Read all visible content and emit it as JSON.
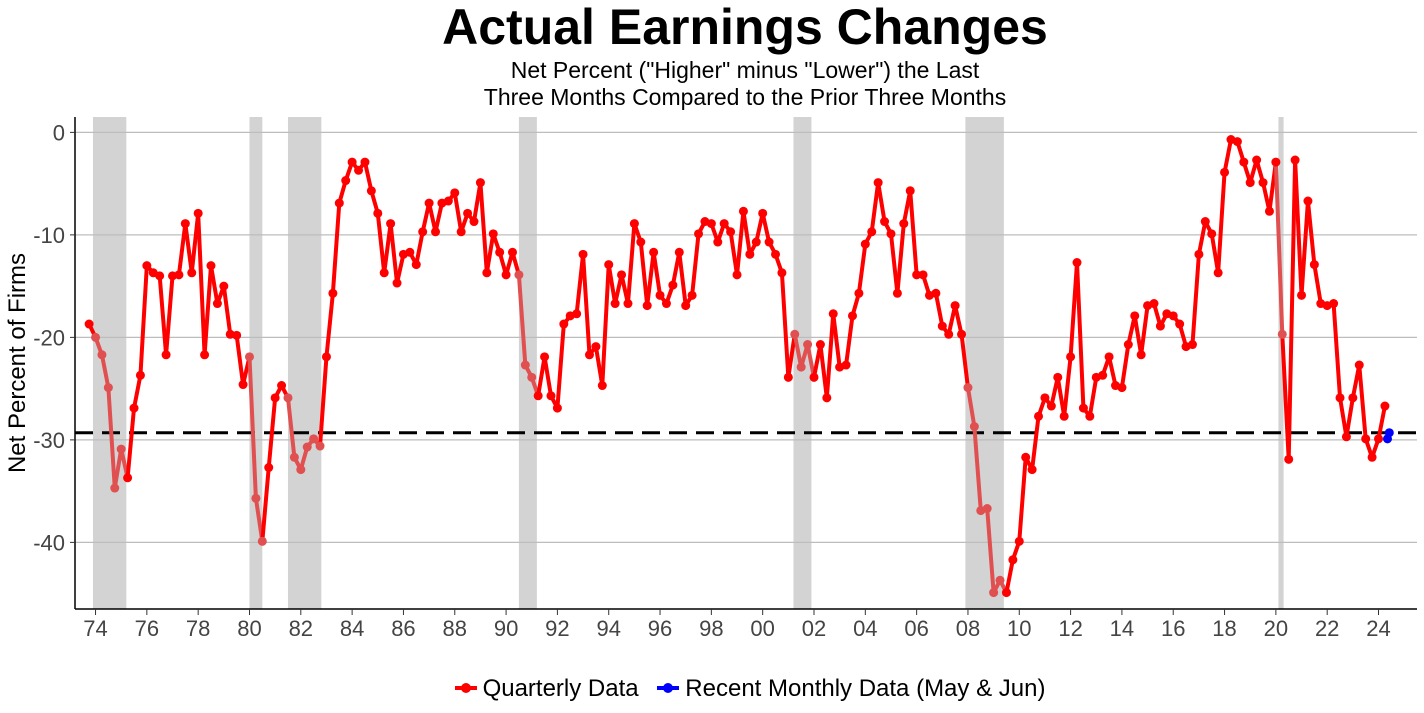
{
  "chart_data": {
    "type": "line",
    "title": "Actual Earnings Changes",
    "subtitle_line1": "Net Percent (\"Higher\" minus \"Lower\") the Last",
    "subtitle_line2": "Three Months Compared to the Prior Three Months",
    "ylabel": "Net Percent of Firms",
    "xlabel": "",
    "xlim": [
      1973.2,
      2025.5
    ],
    "ylim": [
      -46.5,
      1.5
    ],
    "x_ticks": [
      1974,
      1976,
      1978,
      1980,
      1982,
      1984,
      1986,
      1988,
      1990,
      1992,
      1994,
      1996,
      1998,
      2000,
      2002,
      2004,
      2006,
      2008,
      2010,
      2012,
      2014,
      2016,
      2018,
      2020,
      2022,
      2024
    ],
    "x_tick_labels": [
      "74",
      "76",
      "78",
      "80",
      "82",
      "84",
      "86",
      "88",
      "90",
      "92",
      "94",
      "96",
      "98",
      "00",
      "02",
      "04",
      "06",
      "08",
      "10",
      "12",
      "14",
      "16",
      "18",
      "20",
      "22",
      "24"
    ],
    "y_ticks": [
      0,
      -10,
      -20,
      -30,
      -40
    ],
    "y_tick_labels": [
      "0",
      "-10",
      "-20",
      "-30",
      "-40"
    ],
    "reference_line": -29.3,
    "recessions": [
      [
        1973.9,
        1975.2
      ],
      [
        1980.0,
        1980.5
      ],
      [
        1981.5,
        1982.8
      ],
      [
        1990.5,
        1991.2
      ],
      [
        2001.2,
        2001.9
      ],
      [
        2007.9,
        2009.4
      ],
      [
        2020.1,
        2020.3
      ]
    ],
    "colors": {
      "quarterly": "#ff0000",
      "recession_segment": "#e05050",
      "monthly": "#0000ff",
      "recession_shade": "#d3d3d3",
      "grid": "#bdbdbd",
      "reference": "#000000"
    },
    "series": [
      {
        "name": "Quarterly Data",
        "x": [
          1973.75,
          1974.0,
          1974.25,
          1974.5,
          1974.75,
          1975.0,
          1975.25,
          1975.5,
          1975.75,
          1976.0,
          1976.25,
          1976.5,
          1976.75,
          1977.0,
          1977.25,
          1977.5,
          1977.75,
          1978.0,
          1978.25,
          1978.5,
          1978.75,
          1979.0,
          1979.25,
          1979.5,
          1979.75,
          1980.0,
          1980.25,
          1980.5,
          1980.75,
          1981.0,
          1981.25,
          1981.5,
          1981.75,
          1982.0,
          1982.25,
          1982.5,
          1982.75,
          1983.0,
          1983.25,
          1983.5,
          1983.75,
          1984.0,
          1984.25,
          1984.5,
          1984.75,
          1985.0,
          1985.25,
          1985.5,
          1985.75,
          1986.0,
          1986.25,
          1986.5,
          1986.75,
          1987.0,
          1987.25,
          1987.5,
          1987.75,
          1988.0,
          1988.25,
          1988.5,
          1988.75,
          1989.0,
          1989.25,
          1989.5,
          1989.75,
          1990.0,
          1990.25,
          1990.5,
          1990.75,
          1991.0,
          1991.25,
          1991.5,
          1991.75,
          1992.0,
          1992.25,
          1992.5,
          1992.75,
          1993.0,
          1993.25,
          1993.5,
          1993.75,
          1994.0,
          1994.25,
          1994.5,
          1994.75,
          1995.0,
          1995.25,
          1995.5,
          1995.75,
          1996.0,
          1996.25,
          1996.5,
          1996.75,
          1997.0,
          1997.25,
          1997.5,
          1997.75,
          1998.0,
          1998.25,
          1998.5,
          1998.75,
          1999.0,
          1999.25,
          1999.5,
          1999.75,
          2000.0,
          2000.25,
          2000.5,
          2000.75,
          2001.0,
          2001.25,
          2001.5,
          2001.75,
          2002.0,
          2002.25,
          2002.5,
          2002.75,
          2003.0,
          2003.25,
          2003.5,
          2003.75,
          2004.0,
          2004.25,
          2004.5,
          2004.75,
          2005.0,
          2005.25,
          2005.5,
          2005.75,
          2006.0,
          2006.25,
          2006.5,
          2006.75,
          2007.0,
          2007.25,
          2007.5,
          2007.75,
          2008.0,
          2008.25,
          2008.5,
          2008.75,
          2009.0,
          2009.25,
          2009.5,
          2009.75,
          2010.0,
          2010.25,
          2010.5,
          2010.75,
          2011.0,
          2011.25,
          2011.5,
          2011.75,
          2012.0,
          2012.25,
          2012.5,
          2012.75,
          2013.0,
          2013.25,
          2013.5,
          2013.75,
          2014.0,
          2014.25,
          2014.5,
          2014.75,
          2015.0,
          2015.25,
          2015.5,
          2015.75,
          2016.0,
          2016.25,
          2016.5,
          2016.75,
          2017.0,
          2017.25,
          2017.5,
          2017.75,
          2018.0,
          2018.25,
          2018.5,
          2018.75,
          2019.0,
          2019.25,
          2019.5,
          2019.75,
          2020.0,
          2020.25,
          2020.5,
          2020.75,
          2021.0,
          2021.25,
          2021.5,
          2021.75,
          2022.0,
          2022.25,
          2022.5,
          2022.75,
          2023.0,
          2023.25,
          2023.5,
          2023.75,
          2024.0,
          2024.25
        ],
        "values": [
          -18.7,
          -20.0,
          -21.7,
          -24.9,
          -34.7,
          -30.9,
          -33.7,
          -26.9,
          -23.7,
          -13.0,
          -13.7,
          -14.0,
          -21.7,
          -14.0,
          -13.9,
          -8.9,
          -13.7,
          -7.9,
          -21.7,
          -13.0,
          -16.7,
          -15.0,
          -19.7,
          -19.8,
          -24.6,
          -21.9,
          -35.7,
          -39.9,
          -32.7,
          -25.9,
          -24.7,
          -25.9,
          -31.7,
          -32.9,
          -30.7,
          -29.9,
          -30.6,
          -21.9,
          -15.7,
          -6.9,
          -4.7,
          -2.9,
          -3.7,
          -2.9,
          -5.7,
          -7.9,
          -13.7,
          -8.9,
          -14.7,
          -11.9,
          -11.7,
          -12.9,
          -9.7,
          -6.9,
          -9.7,
          -6.9,
          -6.7,
          -5.9,
          -9.7,
          -7.9,
          -8.7,
          -4.9,
          -13.7,
          -9.9,
          -11.7,
          -13.9,
          -11.7,
          -13.9,
          -22.7,
          -23.9,
          -25.7,
          -21.9,
          -25.7,
          -26.9,
          -18.7,
          -17.9,
          -17.7,
          -11.9,
          -21.7,
          -20.9,
          -24.7,
          -12.9,
          -16.7,
          -13.9,
          -16.7,
          -8.9,
          -10.7,
          -16.9,
          -11.7,
          -15.9,
          -16.7,
          -14.9,
          -11.7,
          -16.9,
          -15.9,
          -9.9,
          -8.7,
          -8.9,
          -10.7,
          -8.9,
          -9.7,
          -13.9,
          -7.7,
          -11.9,
          -10.7,
          -7.9,
          -10.7,
          -11.9,
          -13.7,
          -23.9,
          -19.7,
          -22.9,
          -20.7,
          -23.9,
          -20.7,
          -25.9,
          -17.7,
          -22.9,
          -22.7,
          -17.9,
          -15.7,
          -10.9,
          -9.7,
          -4.9,
          -8.7,
          -9.9,
          -15.7,
          -8.9,
          -5.7,
          -13.9,
          -13.9,
          -15.9,
          -15.7,
          -18.9,
          -19.7,
          -16.9,
          -19.7,
          -24.9,
          -28.7,
          -36.9,
          -36.7,
          -44.9,
          -43.7,
          -44.9,
          -41.7,
          -39.9,
          -31.7,
          -32.9,
          -27.7,
          -25.9,
          -26.7,
          -23.9,
          -27.7,
          -21.9,
          -12.7,
          -26.9,
          -27.7,
          -23.9,
          -23.7,
          -21.9,
          -24.7,
          -24.9,
          -20.7,
          -17.9,
          -21.7,
          -16.9,
          -16.7,
          -18.9,
          -17.7,
          -17.9,
          -18.7,
          -20.9,
          -20.7,
          -11.9,
          -8.7,
          -9.9,
          -13.7,
          -3.9,
          -0.7,
          -0.9,
          -2.9,
          -4.9,
          -2.7,
          -4.9,
          -7.7,
          -2.9,
          -19.7,
          -31.9,
          -2.7,
          -15.9,
          -6.7,
          -12.9,
          -16.7,
          -16.9,
          -16.7,
          -25.9,
          -29.7,
          -25.9,
          -22.7,
          -29.9,
          -31.7,
          -29.9,
          -26.7
        ]
      },
      {
        "name": "Recent Monthly Data (May & Jun)",
        "x": [
          2024.35,
          2024.42
        ],
        "values": [
          -29.9,
          -29.3
        ]
      }
    ],
    "legend": [
      "Quarterly Data",
      "Recent Monthly Data (May & Jun)"
    ],
    "legend_position": "bottom"
  }
}
